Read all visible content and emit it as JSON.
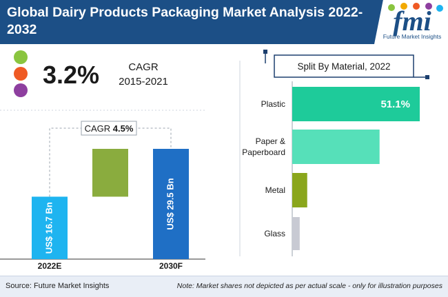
{
  "title": "Global Dairy Products Packaging Market Analysis 2022-2032",
  "logo": {
    "letters": "fmi",
    "tagline": "Future Market Insights"
  },
  "cagr_callout": {
    "value": "3.2%",
    "label": "CAGR",
    "period": "2015-2021"
  },
  "source": "Source: Future Market Insights",
  "note": "Note: Market shares not depicted as per actual scale - only for illustration purposes",
  "colors": {
    "header": "#1c4f86",
    "dot_green": "#8ac53f",
    "dot_orange": "#ef5a24",
    "dot_purple": "#8e3f9f"
  },
  "chart_data": [
    {
      "type": "bar",
      "subtype": "waterfall",
      "categories": [
        "2022E",
        "2030F"
      ],
      "values": [
        16.7,
        29.5
      ],
      "value_labels": [
        "US$ 16.7 Bn",
        "US$ 29.5 Bn"
      ],
      "increment": 12.8,
      "cagr_label": "CAGR",
      "cagr_value": "4.5%",
      "colors": [
        "#1eb4f0",
        "#8aac3e",
        "#1f6fc5"
      ]
    },
    {
      "type": "bar",
      "orientation": "horizontal",
      "title": "Split By Material, 2022",
      "categories": [
        "Plastic",
        "Paper & Paperboard",
        "Metal",
        "Glass"
      ],
      "category_lines": [
        [
          "Plastic"
        ],
        [
          "Paper &",
          "Paperboard"
        ],
        [
          "Metal"
        ],
        [
          "Glass"
        ]
      ],
      "values": [
        51.1,
        35.0,
        6.0,
        3.0
      ],
      "value_labels": [
        "51.1%",
        "",
        "",
        ""
      ],
      "colors": [
        "#1ecb9a",
        "#56e0b9",
        "#8aa61c",
        "#c8cad3"
      ]
    }
  ]
}
